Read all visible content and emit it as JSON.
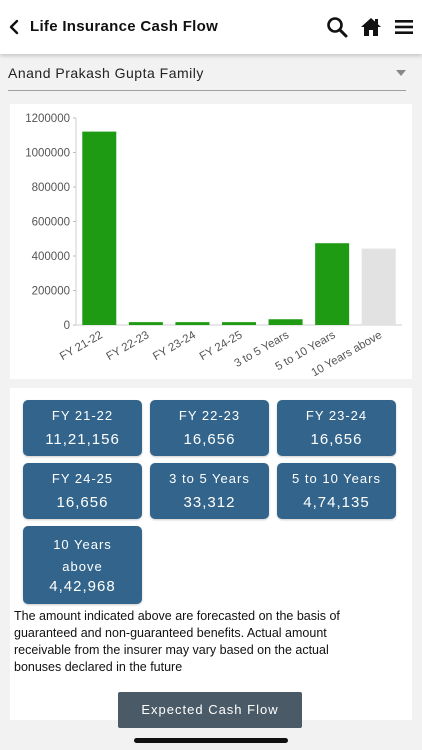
{
  "header": {
    "title": "Life Insurance Cash Flow",
    "icons": [
      "back-arrow",
      "search",
      "home",
      "menu"
    ]
  },
  "family_select": {
    "value": "Anand Prakash Gupta Family"
  },
  "chart_data": {
    "type": "bar",
    "categories": [
      "FY 21-22",
      "FY 22-23",
      "FY 23-24",
      "FY 24-25",
      "3 to 5 Years",
      "5 to 10 Years",
      "10 Years above"
    ],
    "values": [
      1121156,
      16656,
      16656,
      16656,
      33312,
      474135,
      442968
    ],
    "y_ticks": [
      "1200000",
      "1000000",
      "800000",
      "600000",
      "400000",
      "200000",
      "0"
    ],
    "ylim": [
      0,
      1200000
    ],
    "colors": [
      "#1e9b12",
      "#1e9b12",
      "#1e9b12",
      "#1e9b12",
      "#1e9b12",
      "#1e9b12",
      "#e2e2e2"
    ],
    "grid": false,
    "title": "",
    "xlabel": "",
    "ylabel": ""
  },
  "tiles": [
    {
      "label": "FY 21-22",
      "value": "11,21,156"
    },
    {
      "label": "FY 22-23",
      "value": "16,656"
    },
    {
      "label": "FY 23-24",
      "value": "16,656"
    },
    {
      "label": "FY 24-25",
      "value": "16,656"
    },
    {
      "label": "3 to 5 Years",
      "value": "33,312"
    },
    {
      "label": "5 to 10 Years",
      "value": "4,74,135"
    },
    {
      "label": "10 Years above",
      "value": "4,42,968"
    }
  ],
  "note": "The amount indicated above are forecasted on the basis of guaranteed and non-guaranteed benefits. Actual amount receivable from the insurer may vary based on the actual bonuses declared in the future",
  "cta_label": "Expected Cash Flow"
}
